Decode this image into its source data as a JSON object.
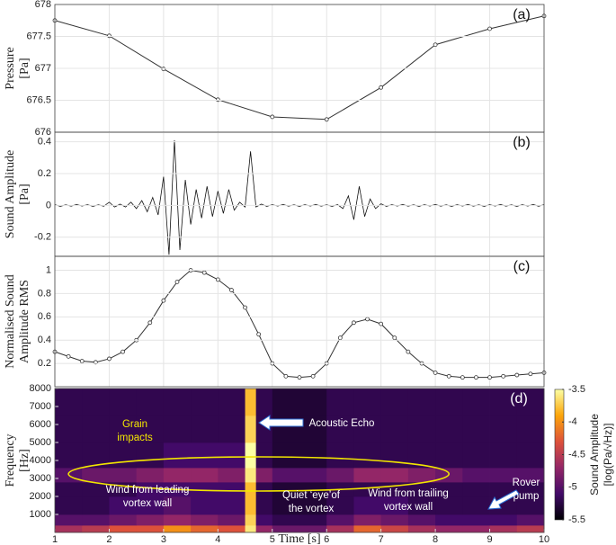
{
  "chart_data": [
    {
      "type": "line",
      "label": "(a)",
      "ylabel": [
        "Pressure",
        "[Pa]"
      ],
      "color": "#333333",
      "markers": true,
      "grid": true,
      "x": [
        1,
        2,
        3,
        4,
        5,
        6,
        7,
        8,
        9,
        10
      ],
      "values": [
        677.75,
        677.51,
        676.99,
        676.51,
        676.24,
        676.2,
        676.7,
        677.37,
        677.62,
        677.82
      ],
      "xlim": [
        1,
        10
      ],
      "ylim": [
        676,
        678
      ],
      "yticks": [
        676,
        676.5,
        677,
        677.5,
        678
      ]
    },
    {
      "type": "line",
      "label": "(b)",
      "ylabel": [
        "Sound Amplitude",
        "[Pa]"
      ],
      "color": "#111111",
      "markers": false,
      "grid": true,
      "x": [
        1,
        1.1,
        1.2,
        1.3,
        1.4,
        1.5,
        1.6,
        1.7,
        1.8,
        1.9,
        2,
        2.1,
        2.2,
        2.3,
        2.4,
        2.5,
        2.6,
        2.7,
        2.8,
        2.9,
        3,
        3.1,
        3.2,
        3.3,
        3.4,
        3.5,
        3.6,
        3.7,
        3.8,
        3.9,
        4,
        4.1,
        4.2,
        4.3,
        4.4,
        4.5,
        4.6,
        4.7,
        4.8,
        4.9,
        5,
        5.1,
        5.2,
        5.3,
        5.4,
        5.5,
        5.6,
        5.7,
        5.8,
        5.9,
        6,
        6.1,
        6.2,
        6.3,
        6.4,
        6.5,
        6.6,
        6.7,
        6.8,
        6.9,
        7,
        7.1,
        7.2,
        7.3,
        7.4,
        7.5,
        7.6,
        7.7,
        7.8,
        7.9,
        8,
        8.1,
        8.2,
        8.3,
        8.4,
        8.5,
        8.6,
        8.7,
        8.8,
        8.9,
        9,
        9.1,
        9.2,
        9.3,
        9.4,
        9.5,
        9.6,
        9.7,
        9.8,
        9.9,
        10
      ],
      "values": [
        0.005,
        -0.006,
        0.004,
        -0.005,
        0.006,
        -0.004,
        0.005,
        -0.006,
        0.004,
        -0.005,
        0.02,
        -0.01,
        0.008,
        -0.01,
        0.02,
        -0.02,
        0.03,
        -0.04,
        0.05,
        -0.06,
        0.18,
        -0.31,
        0.41,
        -0.28,
        0.16,
        -0.12,
        0.1,
        -0.08,
        0.12,
        -0.07,
        0.09,
        -0.05,
        0.1,
        -0.03,
        0.02,
        -0.01,
        0.34,
        -0.01,
        0.008,
        -0.006,
        0.005,
        -0.004,
        0.006,
        -0.005,
        0.004,
        -0.006,
        0.005,
        -0.004,
        0.006,
        -0.005,
        0.004,
        -0.006,
        0.005,
        -0.02,
        0.06,
        -0.09,
        0.12,
        -0.07,
        0.04,
        -0.02,
        0.01,
        -0.006,
        0.005,
        -0.004,
        0.006,
        -0.005,
        0.004,
        -0.006,
        0.005,
        -0.004,
        0.006,
        -0.005,
        0.004,
        -0.006,
        0.005,
        -0.004,
        0.006,
        -0.005,
        0.004,
        -0.006,
        0.005,
        -0.004,
        0.006,
        -0.005,
        0.004,
        -0.006,
        0.005,
        -0.004,
        0.006,
        -0.005,
        0.005
      ],
      "xlim": [
        1,
        10
      ],
      "ylim": [
        -0.32,
        0.46
      ],
      "yticks": [
        -0.2,
        0,
        0.2,
        0.4
      ]
    },
    {
      "type": "line",
      "label": "(c)",
      "ylabel": [
        "Normalised Sound",
        "Amplitude RMS"
      ],
      "color": "#333333",
      "markers": true,
      "grid": true,
      "x": [
        1,
        1.25,
        1.5,
        1.75,
        2,
        2.25,
        2.5,
        2.75,
        3,
        3.25,
        3.5,
        3.75,
        4,
        4.25,
        4.5,
        4.75,
        5,
        5.25,
        5.5,
        5.75,
        6,
        6.25,
        6.5,
        6.75,
        7,
        7.25,
        7.5,
        7.75,
        8,
        8.25,
        8.5,
        8.75,
        9,
        9.25,
        9.5,
        9.75,
        10
      ],
      "values": [
        0.3,
        0.26,
        0.22,
        0.21,
        0.24,
        0.3,
        0.4,
        0.55,
        0.74,
        0.9,
        1.0,
        0.98,
        0.92,
        0.83,
        0.68,
        0.45,
        0.2,
        0.09,
        0.08,
        0.09,
        0.2,
        0.42,
        0.55,
        0.58,
        0.54,
        0.42,
        0.3,
        0.2,
        0.12,
        0.09,
        0.08,
        0.08,
        0.08,
        0.09,
        0.1,
        0.11,
        0.12
      ],
      "xlim": [
        1,
        10
      ],
      "ylim": [
        0,
        1.12
      ],
      "yticks": [
        0.2,
        0.4,
        0.6,
        0.8,
        1
      ]
    },
    {
      "type": "heatmap",
      "label": "(d)",
      "ylabel": [
        "Frequency",
        "[Hz]"
      ],
      "xlabel": "Time [s]",
      "xbins": [
        1,
        1.5,
        2,
        2.5,
        3,
        3.5,
        4,
        4.5,
        4.7,
        5,
        5.5,
        6,
        6.5,
        7,
        7.5,
        8,
        8.5,
        9,
        9.5,
        10
      ],
      "ybins": [
        0,
        400,
        1000,
        2000,
        2800,
        3600,
        5000,
        6500,
        8000
      ],
      "z": [
        [
          -4.6,
          -4.5,
          -4.3,
          -4.3,
          -4.0,
          -4.2,
          -4.3,
          -3.6,
          -4.7,
          -4.9,
          -4.9,
          -4.6,
          -4.2,
          -4.4,
          -4.6,
          -4.7,
          -4.7,
          -4.6,
          -4.5
        ],
        [
          -5.0,
          -5.0,
          -4.9,
          -4.8,
          -4.7,
          -4.8,
          -4.9,
          -3.7,
          -5.1,
          -5.2,
          -5.2,
          -5.0,
          -4.8,
          -4.9,
          -5.0,
          -5.1,
          -5.1,
          -5.1,
          -5.0
        ],
        [
          -5.2,
          -5.2,
          -5.1,
          -5.1,
          -5.0,
          -5.1,
          -5.1,
          -3.8,
          -5.2,
          -5.3,
          -5.3,
          -5.2,
          -5.1,
          -5.1,
          -5.2,
          -5.2,
          -5.2,
          -5.2,
          -5.2
        ],
        [
          -5.2,
          -5.2,
          -5.2,
          -5.1,
          -5.1,
          -5.1,
          -5.1,
          -3.8,
          -5.2,
          -5.3,
          -5.3,
          -5.2,
          -5.2,
          -5.2,
          -5.2,
          -5.2,
          -5.2,
          -5.2,
          -5.2
        ],
        [
          -5.0,
          -4.9,
          -4.9,
          -4.8,
          -4.7,
          -4.7,
          -4.8,
          -3.6,
          -4.8,
          -5.0,
          -5.0,
          -4.9,
          -4.7,
          -4.7,
          -4.8,
          -4.9,
          -5.0,
          -5.0,
          -5.0
        ],
        [
          -5.2,
          -5.2,
          -5.2,
          -5.2,
          -5.1,
          -5.1,
          -5.1,
          -3.5,
          -5.2,
          -5.3,
          -5.3,
          -5.2,
          -5.2,
          -5.2,
          -5.2,
          -5.2,
          -5.2,
          -5.2,
          -5.2
        ],
        [
          -5.2,
          -5.2,
          -5.2,
          -5.2,
          -5.2,
          -5.2,
          -5.2,
          -3.7,
          -5.2,
          -5.3,
          -5.3,
          -5.2,
          -5.2,
          -5.2,
          -5.2,
          -5.2,
          -5.2,
          -5.2,
          -5.2
        ],
        [
          -5.2,
          -5.2,
          -5.2,
          -5.2,
          -5.2,
          -5.2,
          -5.2,
          -3.8,
          -5.2,
          -5.3,
          -5.3,
          -5.2,
          -5.2,
          -5.2,
          -5.2,
          -5.2,
          -5.2,
          -5.2,
          -5.2
        ]
      ],
      "xlim": [
        1,
        10
      ],
      "xticks": [
        1,
        2,
        3,
        4,
        5,
        6,
        7,
        8,
        9,
        10
      ],
      "ylim": [
        0,
        8000
      ],
      "yticks": [
        1000,
        2000,
        3000,
        4000,
        5000,
        6000,
        7000,
        8000
      ],
      "zlim": [
        -5.5,
        -3.5
      ],
      "zticks": [
        -5.5,
        -5,
        -4.5,
        -4,
        -3.5
      ],
      "colorscale": [
        "#000004",
        "#420a68",
        "#932667",
        "#dd513a",
        "#fca50a",
        "#fcffa4"
      ],
      "colorbar_label": [
        "Sound Amplitude",
        "[log(Pa/√Hz)]"
      ],
      "annotations": [
        {
          "text": [
            "Grain",
            "impacts"
          ],
          "color": "#f2e600"
        },
        {
          "text": [
            "Acoustic Echo"
          ],
          "color": "#ffffff"
        },
        {
          "text": [
            "Wind from leading",
            "vortex wall"
          ],
          "color": "#ffffff"
        },
        {
          "text": [
            "Quiet ‘eye’of",
            "the vortex"
          ],
          "color": "#ffffff"
        },
        {
          "text": [
            "Wind from trailing",
            "vortex wall"
          ],
          "color": "#ffffff"
        },
        {
          "text": [
            "Rover",
            "pump"
          ],
          "color": "#ffffff"
        }
      ]
    }
  ]
}
